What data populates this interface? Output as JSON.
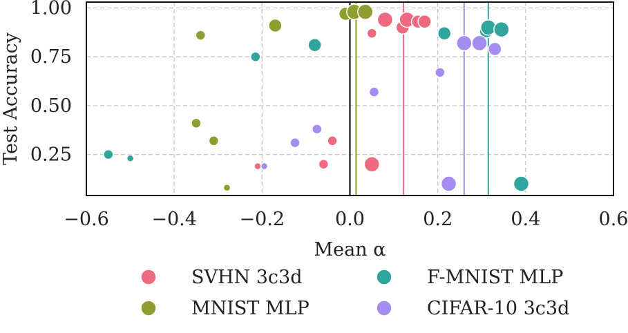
{
  "chart_data": {
    "type": "scatter",
    "title": "",
    "xlabel": "Mean α",
    "ylabel": "Test Accuracy",
    "xlim": [
      -0.6,
      0.6
    ],
    "ylim": [
      0.04,
      1.03
    ],
    "xticks": [
      -0.6,
      -0.4,
      -0.2,
      0.0,
      0.2,
      0.4,
      0.6
    ],
    "xtick_labels": [
      "−0.6",
      "−0.4",
      "−0.2",
      "0.0",
      "0.2",
      "0.4",
      "0.6"
    ],
    "yticks": [
      0.25,
      0.5,
      0.75,
      1.0
    ],
    "ytick_labels": [
      "0.25",
      "0.50",
      "0.75",
      "1.00"
    ],
    "grid": true,
    "legend_placement": "below",
    "series": [
      {
        "name": "SVHN 3c3d",
        "color": "#ee6a80",
        "mean_alpha": 0.122,
        "points": [
          {
            "x": -0.21,
            "y": 0.19,
            "size": 1
          },
          {
            "x": -0.06,
            "y": 0.2,
            "size": 2
          },
          {
            "x": -0.04,
            "y": 0.32,
            "size": 2
          },
          {
            "x": 0.05,
            "y": 0.87,
            "size": 2
          },
          {
            "x": 0.05,
            "y": 0.2,
            "size": 4
          },
          {
            "x": 0.08,
            "y": 0.94,
            "size": 4
          },
          {
            "x": 0.12,
            "y": 0.9,
            "size": 3
          },
          {
            "x": 0.13,
            "y": 0.94,
            "size": 4
          },
          {
            "x": 0.155,
            "y": 0.93,
            "size": 3
          },
          {
            "x": 0.17,
            "y": 0.93,
            "size": 3
          }
        ]
      },
      {
        "name": "MNIST MLP",
        "color": "#8f9e30",
        "mean_alpha": 0.014,
        "points": [
          {
            "x": -0.34,
            "y": 0.86,
            "size": 2
          },
          {
            "x": -0.35,
            "y": 0.41,
            "size": 2
          },
          {
            "x": -0.31,
            "y": 0.32,
            "size": 2
          },
          {
            "x": -0.28,
            "y": 0.08,
            "size": 1
          },
          {
            "x": -0.17,
            "y": 0.91,
            "size": 3
          },
          {
            "x": -0.01,
            "y": 0.97,
            "size": 3
          },
          {
            "x": 0.01,
            "y": 0.98,
            "size": 4
          },
          {
            "x": 0.035,
            "y": 0.98,
            "size": 4
          }
        ]
      },
      {
        "name": "F-MNIST MLP",
        "color": "#2fa59e",
        "mean_alpha": 0.315,
        "points": [
          {
            "x": -0.55,
            "y": 0.25,
            "size": 2
          },
          {
            "x": -0.5,
            "y": 0.23,
            "size": 1
          },
          {
            "x": -0.215,
            "y": 0.75,
            "size": 2
          },
          {
            "x": -0.08,
            "y": 0.81,
            "size": 3
          },
          {
            "x": 0.215,
            "y": 0.87,
            "size": 3
          },
          {
            "x": 0.31,
            "y": 0.88,
            "size": 3
          },
          {
            "x": 0.315,
            "y": 0.9,
            "size": 4
          },
          {
            "x": 0.345,
            "y": 0.89,
            "size": 4
          },
          {
            "x": 0.39,
            "y": 0.1,
            "size": 4
          }
        ]
      },
      {
        "name": "CIFAR-10 3c3d",
        "color": "#a58cf0",
        "mean_alpha": 0.26,
        "points": [
          {
            "x": -0.195,
            "y": 0.19,
            "size": 1
          },
          {
            "x": -0.125,
            "y": 0.31,
            "size": 2
          },
          {
            "x": -0.075,
            "y": 0.38,
            "size": 2
          },
          {
            "x": 0.055,
            "y": 0.57,
            "size": 2
          },
          {
            "x": 0.205,
            "y": 0.67,
            "size": 2
          },
          {
            "x": 0.225,
            "y": 0.1,
            "size": 4
          },
          {
            "x": 0.26,
            "y": 0.82,
            "size": 4
          },
          {
            "x": 0.295,
            "y": 0.82,
            "size": 4
          },
          {
            "x": 0.33,
            "y": 0.79,
            "size": 3
          }
        ]
      }
    ],
    "reference_lines": {
      "vertical_x": 0.0,
      "color": "#000000"
    },
    "legend": {
      "columns": 2,
      "entries": [
        {
          "label": "SVHN 3c3d",
          "color": "#ee6a80"
        },
        {
          "label": "F-MNIST MLP",
          "color": "#2fa59e"
        },
        {
          "label": "MNIST MLP",
          "color": "#8f9e30"
        },
        {
          "label": "CIFAR-10 3c3d",
          "color": "#a58cf0"
        }
      ]
    }
  }
}
